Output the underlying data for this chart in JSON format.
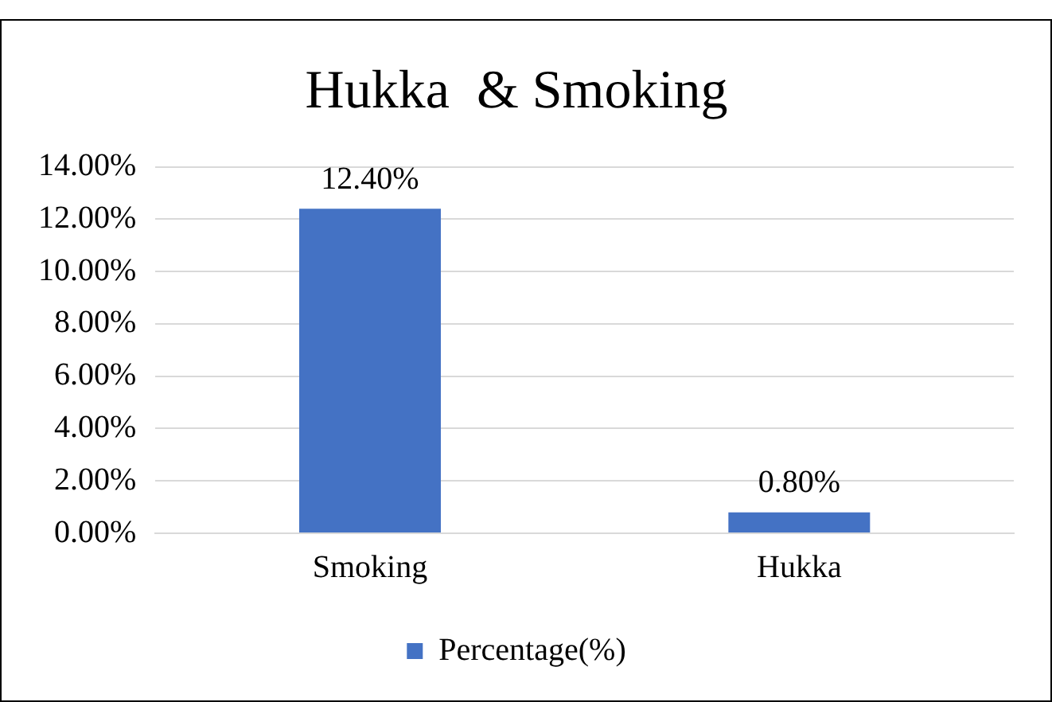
{
  "chart_data": {
    "type": "bar",
    "title": "Hukka  & Smoking",
    "categories": [
      "Smoking",
      "Hukka"
    ],
    "series": [
      {
        "name": "Percentage(%)",
        "color": "#4472c4",
        "values": [
          12.4,
          0.8
        ],
        "value_labels": [
          "12.40%",
          "0.80%"
        ]
      }
    ],
    "ylim": [
      0,
      14
    ],
    "yticks": [
      {
        "value": 0,
        "label": "0.00%"
      },
      {
        "value": 2,
        "label": "2.00%"
      },
      {
        "value": 4,
        "label": "4.00%"
      },
      {
        "value": 6,
        "label": "6.00%"
      },
      {
        "value": 8,
        "label": "8.00%"
      },
      {
        "value": 10,
        "label": "10.00%"
      },
      {
        "value": 12,
        "label": "12.00%"
      },
      {
        "value": 14,
        "label": "14.00%"
      }
    ],
    "grid": "y",
    "legend": "bottom"
  }
}
